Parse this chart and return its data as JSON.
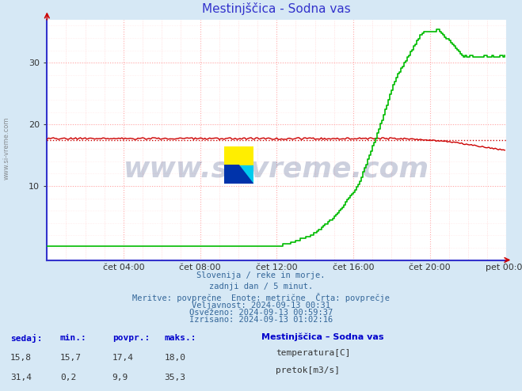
{
  "title": "Mestinjšcica - Sodna vas",
  "title_display": "Mestinjščica - Sodna vas",
  "bg_color": "#d6e8f5",
  "plot_bg_color": "#ffffff",
  "grid_color_v": "#ffaaaa",
  "grid_color_h": "#ffaaaa",
  "x_ticks_labels": [
    "čet 04:00",
    "čet 08:00",
    "čet 12:00",
    "čet 16:00",
    "čet 20:00",
    "pet 00:00"
  ],
  "y_ticks": [
    10,
    20,
    30
  ],
  "y_range": [
    -2,
    37
  ],
  "x_range": [
    0,
    288
  ],
  "temp_color": "#cc0000",
  "flow_color": "#00bb00",
  "avg_dotted_color": "#cc0000",
  "watermark_text": "www.si-vreme.com",
  "footer_lines": [
    "Slovenija / reke in morje.",
    "zadnji dan / 5 minut.",
    "Meritve: povprečne  Enote: metrične  Črta: povprečje",
    "Veljavnost: 2024-09-13 00:31",
    "Osveženo: 2024-09-13 00:59:37",
    "Izrisano: 2024-09-13 01:02:16"
  ],
  "legend_title": "Mestinjščica – Sodna vas",
  "table_headers": [
    "sedaj:",
    "min.:",
    "povpr.:",
    "maks.:"
  ],
  "table_row1": [
    "15,8",
    "15,7",
    "17,4",
    "18,0"
  ],
  "table_row2": [
    "31,4",
    "0,2",
    "9,9",
    "35,3"
  ],
  "label_temp": "temperatura[C]",
  "label_flow": "pretok[m3/s]",
  "temp_avg": 17.4,
  "temp_min": 15.7,
  "temp_max": 18.0,
  "flow_avg": 9.9,
  "flow_min": 0.2,
  "flow_max": 35.3,
  "temp_current": 15.8,
  "flow_current": 31.4
}
